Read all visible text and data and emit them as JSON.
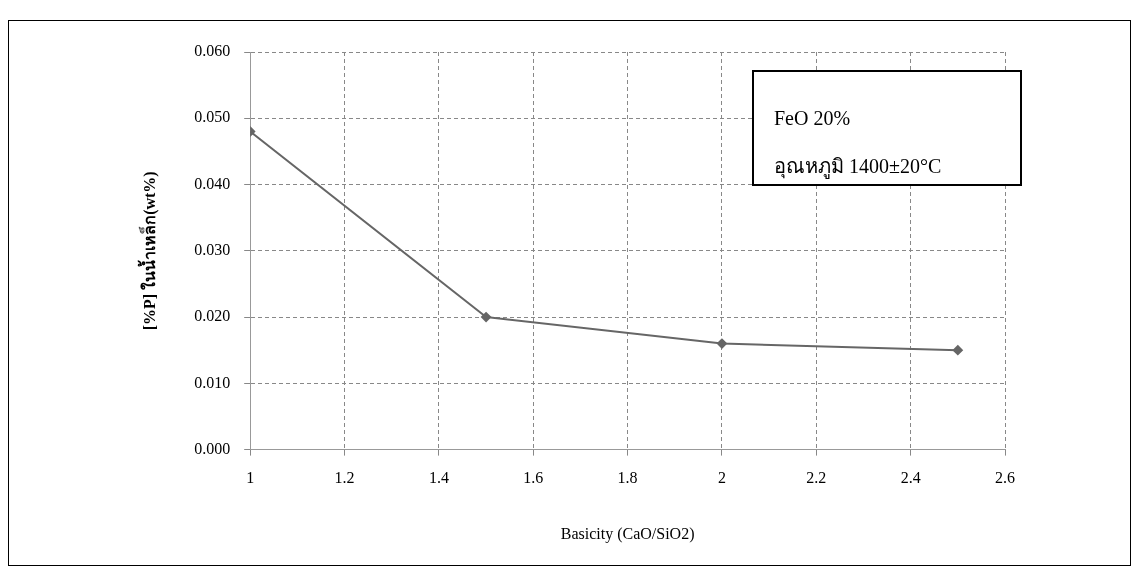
{
  "chart_data": {
    "type": "line",
    "xlabel": "Basicity (CaO/SiO2)",
    "ylabel": "[%P] ในน้ำเหล็ก(wt%)",
    "annotations": [
      "FeO 20%",
      "อุณหภูมิ 1400±20°C"
    ],
    "x": [
      1,
      1.5,
      2,
      2.5
    ],
    "series": [
      {
        "color": "#666666",
        "values": [
          0.048,
          0.02,
          0.016,
          0.015
        ]
      }
    ],
    "xlim": [
      1,
      2.6
    ],
    "xticks": [
      1,
      1.2,
      1.4,
      1.6,
      1.8,
      2,
      2.2,
      2.4,
      2.6
    ],
    "ylim": [
      0,
      0.06
    ],
    "yticks": [
      {
        "value": 0,
        "label": "0.000"
      },
      {
        "value": 0.01,
        "label": "0.010"
      },
      {
        "value": 0.02,
        "label": "0.020"
      },
      {
        "value": 0.03,
        "label": "0.030"
      },
      {
        "value": 0.04,
        "label": "0.040"
      },
      {
        "value": 0.05,
        "label": "0.050"
      },
      {
        "value": 0.06,
        "label": "0.060"
      }
    ],
    "grid": true,
    "marker": "diamond",
    "line_style": "solid",
    "legend": false
  }
}
